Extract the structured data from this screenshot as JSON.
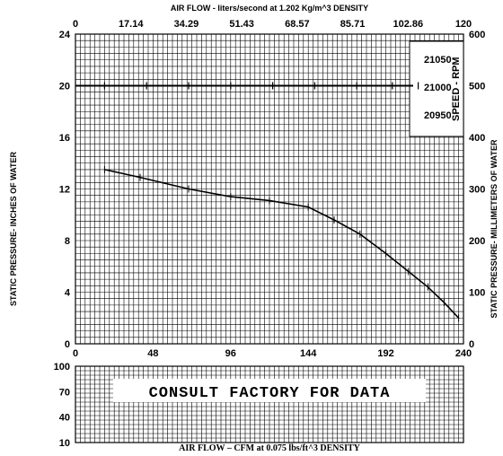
{
  "chart_data": [
    {
      "type": "line",
      "title": "AIR FLOW - liters/second at    1.202 Kg/m^3   DENSITY",
      "xlabel": "AIR FLOW – CFM at 0.075 lbs/ft^3 DENSITY",
      "ylabel": "STATIC PRESSURE- INCHES OF WATER",
      "y2label": "STATIC PRESSURE- MILLIMETERS OF WATER",
      "xlim": [
        0,
        240
      ],
      "ylim": [
        0,
        24
      ],
      "x2lim": [
        0,
        120
      ],
      "y2lim": [
        0,
        600
      ],
      "x_ticks": [
        "0",
        "48",
        "96",
        "144",
        "192",
        "240"
      ],
      "y_ticks": [
        "0",
        "4",
        "8",
        "12",
        "16",
        "20",
        "24"
      ],
      "x2_ticks": [
        "0",
        "17.14",
        "34.29",
        "51.43",
        "68.57",
        "85.71",
        "102.86",
        "120"
      ],
      "y2_ticks": [
        "0",
        "100",
        "200",
        "300",
        "400",
        "500",
        "600"
      ],
      "grid": true,
      "series": [
        {
          "x": [
            18,
            40,
            70,
            96,
            120,
            144,
            160,
            176,
            192,
            206,
            218,
            228,
            237
          ],
          "y": [
            13.5,
            12.9,
            12.0,
            11.4,
            11.1,
            10.6,
            9.6,
            8.5,
            7.0,
            5.6,
            4.4,
            3.2,
            2.0
          ]
        }
      ]
    },
    {
      "type": "line",
      "title": "",
      "xlabel": "AIR FLOW – CFM at 0.075 lbs/ft^3 DENSITY",
      "ylabel": "",
      "y_ticks": [
        "100",
        "70",
        "40",
        "10"
      ],
      "grid": true,
      "annotation": "CONSULT FACTORY FOR DATA"
    }
  ],
  "rpm_box": {
    "label": "SPEED - RPM",
    "values": [
      "21050",
      "21000",
      "20950"
    ]
  }
}
